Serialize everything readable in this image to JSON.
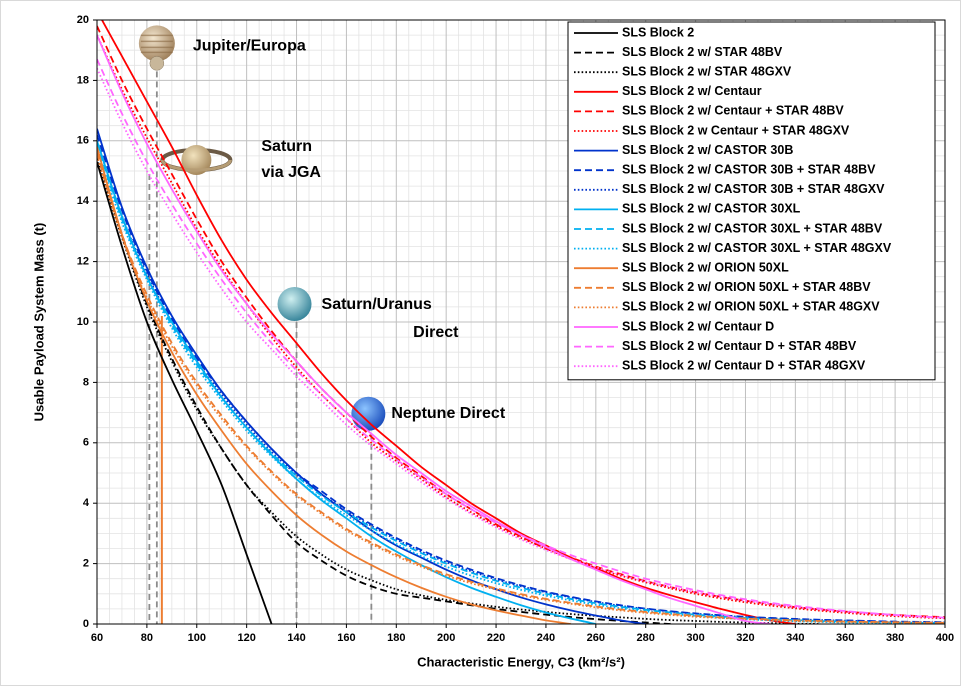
{
  "chart_data": {
    "type": "line",
    "xlabel": "Characteristic Energy, C3 (km²/s²)",
    "ylabel": "Usable Payload System Mass (t)",
    "xlim": [
      60,
      400
    ],
    "ylim": [
      0,
      20
    ],
    "xticks": [
      60,
      80,
      100,
      120,
      140,
      160,
      180,
      200,
      220,
      240,
      260,
      280,
      300,
      320,
      340,
      360,
      380,
      400
    ],
    "yticks": [
      0,
      2,
      4,
      6,
      8,
      10,
      12,
      14,
      16,
      18,
      20
    ],
    "grid": true,
    "minor_grid": true,
    "legend": "upper right",
    "x": [
      60,
      70,
      80,
      90,
      100,
      110,
      120,
      130,
      140,
      150,
      160,
      170,
      180,
      190,
      200,
      210,
      220,
      230,
      240,
      250,
      260,
      270,
      280,
      290,
      300,
      310,
      320,
      330,
      340,
      350,
      360,
      370,
      380,
      390,
      400
    ],
    "series": [
      {
        "name": "SLS Block 2",
        "color": "#000000",
        "style": "solid",
        "values": [
          15.3,
          12.5,
          10.0,
          8.1,
          6.4,
          4.6,
          2.3,
          0,
          null,
          null,
          null,
          null,
          null,
          null,
          null,
          null,
          null,
          null,
          null,
          null,
          null,
          null,
          null,
          null,
          null,
          null,
          null,
          null,
          null,
          null,
          null,
          null,
          null,
          null,
          null
        ]
      },
      {
        "name": "SLS Block 2 w/ STAR 48BV",
        "color": "#000000",
        "style": "dashed",
        "values": [
          15.6,
          12.9,
          10.6,
          8.8,
          7.2,
          5.8,
          4.6,
          3.6,
          2.7,
          2.1,
          1.6,
          1.25,
          1.0,
          0.87,
          0.75,
          0.62,
          0.5,
          0.4,
          0.31,
          0.23,
          0.16,
          0.1,
          0.05,
          0,
          null,
          null,
          null,
          null,
          null,
          null,
          null,
          null,
          null,
          null,
          null
        ]
      },
      {
        "name": "SLS Block 2 w/ STAR 48GXV",
        "color": "#000000",
        "style": "dotted",
        "values": [
          15.4,
          12.8,
          10.5,
          8.7,
          7.1,
          5.8,
          4.6,
          3.7,
          2.9,
          2.3,
          1.8,
          1.45,
          1.15,
          0.95,
          0.8,
          0.68,
          0.57,
          0.48,
          0.4,
          0.33,
          0.27,
          0.22,
          0.17,
          0.13,
          0.1,
          0.07,
          0.05,
          0.03,
          0.01,
          0,
          null,
          null,
          null,
          null,
          null
        ]
      },
      {
        "name": "SLS Block 2 w/ Centaur",
        "color": "#ff0000",
        "style": "solid",
        "values": [
          20.3,
          18.8,
          17.3,
          15.8,
          14.2,
          12.7,
          11.4,
          10.3,
          9.3,
          8.3,
          7.4,
          6.6,
          5.9,
          5.2,
          4.6,
          4.0,
          3.5,
          3.0,
          2.6,
          2.2,
          1.85,
          1.5,
          1.2,
          0.95,
          0.72,
          0.5,
          0.3,
          0.12,
          0,
          null,
          null,
          null,
          null,
          null,
          null
        ]
      },
      {
        "name": "SLS Block 2 w/ Centaur + STAR 48BV",
        "color": "#ff0000",
        "style": "dashed",
        "values": [
          19.8,
          18.0,
          16.4,
          14.9,
          13.4,
          12.0,
          10.8,
          9.7,
          8.7,
          7.8,
          7.0,
          6.2,
          5.5,
          4.9,
          4.3,
          3.8,
          3.3,
          2.9,
          2.5,
          2.2,
          1.9,
          1.65,
          1.42,
          1.22,
          1.05,
          0.9,
          0.77,
          0.66,
          0.56,
          0.48,
          0.41,
          0.35,
          0.3,
          0.26,
          0.23
        ]
      },
      {
        "name": "SLS Block 2 w Centaur + STAR 48GXV",
        "color": "#ff0000",
        "style": "dotted",
        "values": [
          19.5,
          17.7,
          16.1,
          14.6,
          13.1,
          11.8,
          10.6,
          9.5,
          8.5,
          7.6,
          6.8,
          6.0,
          5.4,
          4.8,
          4.2,
          3.7,
          3.25,
          2.85,
          2.5,
          2.15,
          1.85,
          1.6,
          1.38,
          1.18,
          1.0,
          0.85,
          0.72,
          0.61,
          0.52,
          0.44,
          0.37,
          0.31,
          0.26,
          0.22,
          0.19
        ]
      },
      {
        "name": "SLS Block 2 w/ CASTOR 30B",
        "color": "#0033cc",
        "style": "solid",
        "values": [
          16.4,
          13.8,
          11.8,
          10.2,
          8.9,
          7.7,
          6.7,
          5.8,
          5.0,
          4.3,
          3.7,
          3.1,
          2.6,
          2.2,
          1.8,
          1.45,
          1.15,
          0.88,
          0.65,
          0.45,
          0.28,
          0.12,
          0,
          null,
          null,
          null,
          null,
          null,
          null,
          null,
          null,
          null,
          null,
          null,
          null
        ]
      },
      {
        "name": "SLS Block 2 w/ CASTOR 30B + STAR 48BV",
        "color": "#0033cc",
        "style": "dashed",
        "values": [
          16.2,
          13.7,
          11.7,
          10.1,
          8.8,
          7.7,
          6.7,
          5.8,
          5.0,
          4.4,
          3.8,
          3.3,
          2.85,
          2.45,
          2.1,
          1.8,
          1.52,
          1.28,
          1.07,
          0.9,
          0.75,
          0.62,
          0.51,
          0.42,
          0.35,
          0.29,
          0.24,
          0.2,
          0.17,
          0.14,
          0.12,
          0.1,
          0.08,
          0.07,
          0.06
        ]
      },
      {
        "name": "SLS Block 2 w/ CASTOR 30B + STAR 48GXV",
        "color": "#0033cc",
        "style": "dotted",
        "values": [
          16.0,
          13.5,
          11.6,
          10.0,
          8.7,
          7.6,
          6.6,
          5.7,
          4.95,
          4.3,
          3.75,
          3.25,
          2.8,
          2.4,
          2.05,
          1.75,
          1.48,
          1.25,
          1.05,
          0.88,
          0.73,
          0.6,
          0.5,
          0.41,
          0.34,
          0.28,
          0.23,
          0.19,
          0.16,
          0.13,
          0.11,
          0.09,
          0.07,
          0.06,
          0.05
        ]
      },
      {
        "name": "SLS Block 2 w/ CASTOR 30XL",
        "color": "#00b0f0",
        "style": "solid",
        "values": [
          16.0,
          13.5,
          11.5,
          10.0,
          8.7,
          7.5,
          6.5,
          5.6,
          4.8,
          4.1,
          3.5,
          2.9,
          2.4,
          1.95,
          1.55,
          1.2,
          0.9,
          0.62,
          0.38,
          0.18,
          0,
          null,
          null,
          null,
          null,
          null,
          null,
          null,
          null,
          null,
          null,
          null,
          null,
          null,
          null
        ]
      },
      {
        "name": "SLS Block 2 w/ CASTOR 30XL + STAR 48BV",
        "color": "#00b0f0",
        "style": "dashed",
        "values": [
          15.9,
          13.4,
          11.5,
          9.9,
          8.6,
          7.5,
          6.5,
          5.65,
          4.9,
          4.25,
          3.7,
          3.2,
          2.75,
          2.35,
          2.0,
          1.7,
          1.43,
          1.2,
          1.0,
          0.83,
          0.69,
          0.57,
          0.47,
          0.38,
          0.31,
          0.25,
          0.2,
          0.16,
          0.13,
          0.1,
          0.08,
          0.06,
          0.05,
          0.04,
          0.03
        ]
      },
      {
        "name": "SLS Block 2 w/ CASTOR 30XL + STAR 48GXV",
        "color": "#00b0f0",
        "style": "dotted",
        "values": [
          15.7,
          13.3,
          11.4,
          9.8,
          8.5,
          7.4,
          6.4,
          5.55,
          4.8,
          4.15,
          3.6,
          3.1,
          2.65,
          2.25,
          1.9,
          1.6,
          1.35,
          1.13,
          0.94,
          0.78,
          0.64,
          0.52,
          0.42,
          0.34,
          0.27,
          0.21,
          0.16,
          0.12,
          0.09,
          0.07,
          0.05,
          0.04,
          0.03,
          0.02,
          0.02
        ]
      },
      {
        "name": "SLS Block 2 w/ ORION 50XL",
        "color": "#ed7d31",
        "style": "solid",
        "values": [
          15.8,
          12.9,
          10.7,
          9.0,
          7.6,
          6.4,
          5.3,
          4.4,
          3.6,
          2.95,
          2.4,
          1.95,
          1.55,
          1.2,
          0.9,
          0.65,
          0.45,
          0.28,
          0.12,
          0,
          null,
          null,
          null,
          null,
          null,
          null,
          null,
          null,
          null,
          null,
          null,
          null,
          null,
          null,
          null
        ]
      },
      {
        "name": "SLS Block 2 w/ ORION 50XL + STAR 48BV",
        "color": "#ed7d31",
        "style": "dashed",
        "values": [
          15.6,
          12.9,
          10.9,
          9.3,
          8.0,
          6.9,
          5.9,
          5.05,
          4.3,
          3.7,
          3.15,
          2.7,
          2.3,
          1.95,
          1.65,
          1.4,
          1.18,
          0.99,
          0.83,
          0.7,
          0.58,
          0.48,
          0.4,
          0.33,
          0.27,
          0.22,
          0.18,
          0.15,
          0.12,
          0.1,
          0.08,
          0.07,
          0.06,
          0.05,
          0.04
        ]
      },
      {
        "name": "SLS Block 2 w/ ORION 50XL + STAR 48GXV",
        "color": "#ed7d31",
        "style": "dotted",
        "values": [
          15.5,
          12.8,
          10.8,
          9.2,
          7.9,
          6.8,
          5.85,
          5.0,
          4.25,
          3.65,
          3.1,
          2.65,
          2.25,
          1.9,
          1.6,
          1.35,
          1.14,
          0.95,
          0.8,
          0.67,
          0.55,
          0.45,
          0.37,
          0.3,
          0.24,
          0.2,
          0.16,
          0.13,
          0.1,
          0.08,
          0.07,
          0.06,
          0.05,
          0.04,
          0.03
        ]
      },
      {
        "name": "SLS Block 2 w/ Centaur D",
        "color": "#ff66ff",
        "style": "solid",
        "values": [
          19.5,
          17.6,
          15.9,
          14.4,
          13.0,
          11.7,
          10.6,
          9.6,
          8.7,
          7.8,
          7.0,
          6.3,
          5.6,
          5.0,
          4.4,
          3.9,
          3.4,
          2.95,
          2.55,
          2.15,
          1.8,
          1.45,
          1.15,
          0.85,
          0.6,
          0.35,
          0.1,
          0,
          null,
          null,
          null,
          null,
          null,
          null,
          null
        ]
      },
      {
        "name": "SLS Block 2 w/ Centaur D + STAR 48BV",
        "color": "#ff66ff",
        "style": "dashed",
        "values": [
          18.7,
          16.9,
          15.3,
          13.9,
          12.6,
          11.4,
          10.3,
          9.3,
          8.4,
          7.6,
          6.8,
          6.1,
          5.45,
          4.85,
          4.3,
          3.8,
          3.35,
          2.95,
          2.6,
          2.28,
          2.0,
          1.74,
          1.5,
          1.3,
          1.12,
          0.96,
          0.82,
          0.7,
          0.6,
          0.51,
          0.43,
          0.36,
          0.3,
          0.25,
          0.21
        ]
      },
      {
        "name": "SLS Block 2 w/ Centaur D + STAR 48GXV",
        "color": "#ff66ff",
        "style": "dotted",
        "values": [
          18.4,
          16.6,
          15.0,
          13.6,
          12.3,
          11.1,
          10.0,
          9.1,
          8.2,
          7.4,
          6.6,
          5.9,
          5.3,
          4.7,
          4.15,
          3.65,
          3.2,
          2.8,
          2.45,
          2.15,
          1.88,
          1.63,
          1.41,
          1.22,
          1.05,
          0.9,
          0.77,
          0.66,
          0.56,
          0.48,
          0.41,
          0.35,
          0.29,
          0.24,
          0.2
        ]
      }
    ],
    "annotations": [
      {
        "lines": [
          "Jupiter/Europa"
        ],
        "x": 84,
        "top": 18.3
      },
      {
        "lines": [
          "Saturn",
          "via JGA"
        ],
        "x": 81,
        "top": 14.9
      },
      {
        "lines": [
          "Saturn/Uranus",
          "Direct"
        ],
        "x": 140,
        "top": 10.0
      },
      {
        "lines": [
          "Neptune Direct"
        ],
        "x": 170,
        "top": 6.3
      }
    ],
    "reference_lines": [
      {
        "x": 86,
        "top": 10.2,
        "color": "#ed7d31"
      }
    ]
  }
}
